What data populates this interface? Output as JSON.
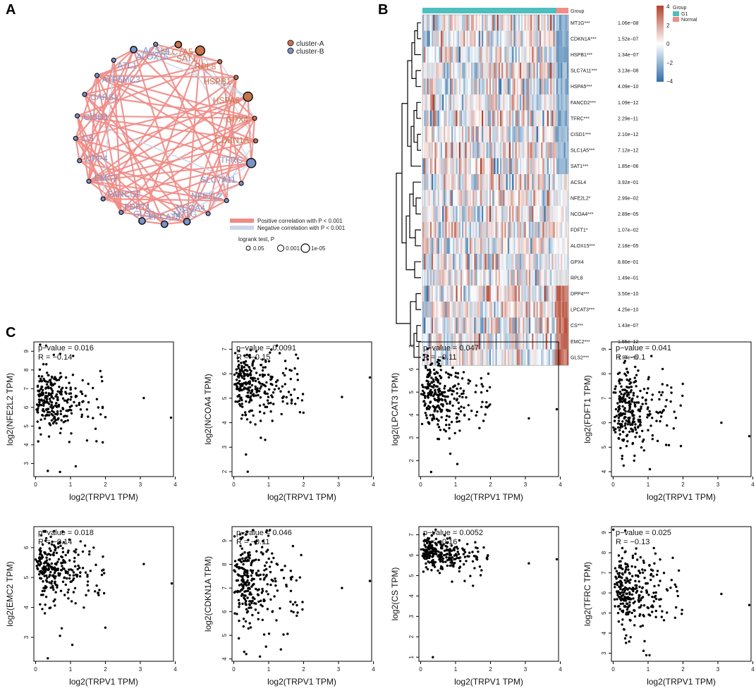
{
  "panels": {
    "a": {
      "letter": "A",
      "legend": {
        "clusters": [
          {
            "label": "cluster-A",
            "color": "#c8744b"
          },
          {
            "label": "cluster-B",
            "color": "#7a93c8"
          }
        ],
        "correlations": [
          {
            "label": "Positive correlation with P < 0.001",
            "color": "#f08b86"
          },
          {
            "label": "Negative correlation with P < 0.001",
            "color": "#c9d6ea"
          }
        ],
        "logrank_title": "logrank test, P",
        "logrank_items": [
          "0.05",
          "0.001",
          "1e-05"
        ]
      },
      "nodes": [
        {
          "label": "SLC7A5",
          "cluster": "A",
          "size": 2
        },
        {
          "label": "SAT1",
          "cluster": "A",
          "size": 3
        },
        {
          "label": "RPL8",
          "cluster": "A",
          "size": 1
        },
        {
          "label": "HSPB1",
          "cluster": "A",
          "size": 1
        },
        {
          "label": "HSPA5",
          "cluster": "A",
          "size": 3
        },
        {
          "label": "GPX4",
          "cluster": "A",
          "size": 1
        },
        {
          "label": "CDKN1A",
          "cluster": "A",
          "size": 1
        },
        {
          "label": "TFRC",
          "cluster": "B",
          "size": 3
        },
        {
          "label": "SLC7A11",
          "cluster": "B",
          "size": 1
        },
        {
          "label": "NFE2L2",
          "cluster": "B",
          "size": 1
        },
        {
          "label": "NCOA4",
          "cluster": "B",
          "size": 1
        },
        {
          "label": "MT1G",
          "cluster": "B",
          "size": 2
        },
        {
          "label": "LPCAT3",
          "cluster": "B",
          "size": 2
        },
        {
          "label": "GLS2",
          "cluster": "B",
          "size": 2
        },
        {
          "label": "FDFT1",
          "cluster": "B",
          "size": 1
        },
        {
          "label": "FANCD2",
          "cluster": "B",
          "size": 1
        },
        {
          "label": "EMC2",
          "cluster": "B",
          "size": 1
        },
        {
          "label": "DPP4",
          "cluster": "B",
          "size": 1
        },
        {
          "label": "CS",
          "cluster": "B",
          "size": 1
        },
        {
          "label": "CISD1",
          "cluster": "B",
          "size": 1
        },
        {
          "label": "CARS1",
          "cluster": "B",
          "size": 1
        },
        {
          "label": "ATP5MC3",
          "cluster": "B",
          "size": 1
        },
        {
          "label": "ATL1",
          "cluster": "B",
          "size": 1
        },
        {
          "label": "ALOX15",
          "cluster": "B",
          "size": 2
        },
        {
          "label": "ACSL4",
          "cluster": "B",
          "size": 1
        }
      ]
    },
    "b": {
      "letter": "B",
      "group_header": "Group",
      "legend_title": "Group",
      "groups": [
        {
          "label": "G1",
          "color": "#4dbfbf"
        },
        {
          "label": "Normal",
          "color": "#f08d86"
        }
      ],
      "scale_ticks": [
        "4",
        "2",
        "0",
        "−2",
        "−4"
      ],
      "rows": [
        {
          "gene": "MT1G***",
          "p": "1.06e−08"
        },
        {
          "gene": "CDKN1A***",
          "p": "1.52e−07"
        },
        {
          "gene": "HSPB1***",
          "p": "1.34e−07"
        },
        {
          "gene": "SLC7A11***",
          "p": "3.13e−08"
        },
        {
          "gene": "HSPA5***",
          "p": "4.09e−10"
        },
        {
          "gene": "FANCD2***",
          "p": "1.09e−12"
        },
        {
          "gene": "TFRC***",
          "p": "2.29e−11"
        },
        {
          "gene": "CISD1***",
          "p": "2.10e−12"
        },
        {
          "gene": "SLC1A5***",
          "p": "7.12e−12"
        },
        {
          "gene": "SAT1***",
          "p": "1.85e−06"
        },
        {
          "gene": "ACSL4",
          "p": "3.92e−01"
        },
        {
          "gene": "NFE2L2*",
          "p": "2.99e−02"
        },
        {
          "gene": "NCOA4***",
          "p": "2.89e−05"
        },
        {
          "gene": "FDFT1*",
          "p": "1.07e−02"
        },
        {
          "gene": "ALOX15***",
          "p": "2.18e−05"
        },
        {
          "gene": "GPX4",
          "p": "8.80e−01"
        },
        {
          "gene": "RPL8",
          "p": "1.49e−01"
        },
        {
          "gene": "DPP4***",
          "p": "3.50e−10"
        },
        {
          "gene": "LPCAT3***",
          "p": "4.25e−10"
        },
        {
          "gene": "CS***",
          "p": "1.43e−07"
        },
        {
          "gene": "EMC2***",
          "p": "1.55e−12"
        },
        {
          "gene": "GLS2***",
          "p": "1.94e−11"
        }
      ]
    },
    "c": {
      "letter": "C"
    }
  },
  "chart_data": [
    {
      "type": "scatter",
      "title": "NFE2L2",
      "xlabel": "log2(TRPV1 TPM)",
      "ylabel": "log2(NFE2L2 TPM)",
      "pvalue_text": "p−value = 0.016",
      "r_text": "R = −0.14",
      "xlim": [
        -0.05,
        3.95
      ],
      "ylim": [
        2.3,
        9.5
      ],
      "yticks": [
        3,
        4,
        5,
        6,
        7,
        8,
        9
      ],
      "xticks": [
        0,
        1,
        2,
        3,
        4
      ],
      "x_tick_labels": [
        "0",
        "1",
        "2",
        "3",
        "4"
      ],
      "y_tick_labels": [
        "3",
        "4",
        "5",
        "6",
        "7",
        "8",
        "9"
      ],
      "n_points": 270,
      "center": 6.4,
      "spread": 0.85,
      "slope": -0.25,
      "seed": 11,
      "outliers": [
        [
          3.1,
          6.5
        ],
        [
          3.88,
          5.45
        ],
        [
          0.35,
          2.6
        ],
        [
          1.15,
          2.85
        ],
        [
          0.7,
          2.55
        ],
        [
          0.3,
          9.3
        ]
      ]
    },
    {
      "type": "scatter",
      "title": "NCOA4",
      "xlabel": "log2(TRPV1 TPM)",
      "ylabel": "log2(NCOA4 TPM)",
      "pvalue_text": "p−value = 0.0091",
      "r_text": "R = −0.15",
      "xlim": [
        -0.05,
        3.95
      ],
      "ylim": [
        1.8,
        7.3
      ],
      "yticks": [
        2,
        3,
        4,
        5,
        6,
        7
      ],
      "xticks": [
        0,
        1,
        2,
        3,
        4
      ],
      "x_tick_labels": [
        "0",
        "1",
        "2",
        "3",
        "4"
      ],
      "y_tick_labels": [
        "2",
        "3",
        "4",
        "5",
        "6",
        "7"
      ],
      "n_points": 270,
      "center": 5.6,
      "spread": 0.6,
      "slope": -0.2,
      "seed": 23,
      "outliers": [
        [
          3.1,
          5.05
        ],
        [
          3.9,
          5.85
        ],
        [
          0.4,
          2.0
        ],
        [
          0.35,
          2.7
        ],
        [
          0.9,
          3.3
        ]
      ]
    },
    {
      "type": "scatter",
      "title": "LPCAT3",
      "xlabel": "log2(TRPV1 TPM)",
      "ylabel": "log2(LPCAT3 TPM)",
      "pvalue_text": "p−value = 0.047",
      "r_text": "R = −0.11",
      "xlim": [
        -0.05,
        3.95
      ],
      "ylim": [
        1.3,
        7.2
      ],
      "yticks": [
        2,
        3,
        4,
        5,
        6,
        7
      ],
      "xticks": [
        0,
        1,
        2,
        3,
        4
      ],
      "x_tick_labels": [
        "0",
        "1",
        "2",
        "3",
        "4"
      ],
      "y_tick_labels": [
        "2",
        "3",
        "4",
        "5",
        "6",
        "7"
      ],
      "n_points": 270,
      "center": 4.8,
      "spread": 0.75,
      "slope": -0.2,
      "seed": 37,
      "outliers": [
        [
          3.1,
          3.85
        ],
        [
          3.9,
          4.25
        ],
        [
          0.3,
          1.5
        ],
        [
          1.05,
          1.85
        ],
        [
          0.85,
          2.3
        ],
        [
          0.2,
          6.9
        ]
      ]
    },
    {
      "type": "scatter",
      "title": "FDFT1",
      "xlabel": "log2(TRPV1 TPM)",
      "ylabel": "log2(FDFT1 TPM)",
      "pvalue_text": "p−value = 0.041",
      "r_text": "R = −0.1",
      "xlim": [
        -0.05,
        3.95
      ],
      "ylim": [
        3.8,
        9.3
      ],
      "yticks": [
        4,
        5,
        6,
        7,
        8,
        9
      ],
      "xticks": [
        0,
        1,
        2,
        3,
        4
      ],
      "x_tick_labels": [
        "0",
        "1",
        "2",
        "3",
        "4"
      ],
      "y_tick_labels": [
        "4",
        "5",
        "6",
        "7",
        "8",
        "9"
      ],
      "n_points": 270,
      "center": 6.6,
      "spread": 0.8,
      "slope": -0.15,
      "seed": 53,
      "outliers": [
        [
          3.1,
          6.0
        ],
        [
          3.9,
          5.45
        ],
        [
          0.3,
          4.25
        ],
        [
          0.6,
          4.45
        ],
        [
          1.05,
          4.1
        ]
      ]
    },
    {
      "type": "scatter",
      "title": "EMC2",
      "xlabel": "log2(TRPV1 TPM)",
      "ylabel": "log2(EMC2 TPM)",
      "pvalue_text": "p−value = 0.018",
      "r_text": "R = −0.14",
      "xlim": [
        -0.05,
        3.95
      ],
      "ylim": [
        2.2,
        6.7
      ],
      "yticks": [
        3,
        4,
        5,
        6
      ],
      "xticks": [
        0,
        1,
        2,
        3,
        4
      ],
      "x_tick_labels": [
        "0",
        "1",
        "2",
        "3",
        "4"
      ],
      "y_tick_labels": [
        "3",
        "4",
        "5",
        "6"
      ],
      "n_points": 270,
      "center": 5.3,
      "spread": 0.5,
      "slope": -0.15,
      "seed": 71,
      "outliers": [
        [
          3.1,
          5.45
        ],
        [
          3.9,
          4.8
        ],
        [
          0.35,
          2.3
        ],
        [
          1.05,
          2.75
        ],
        [
          0.7,
          3.05
        ],
        [
          0.75,
          3.3
        ]
      ]
    },
    {
      "type": "scatter",
      "title": "CDKN1A",
      "xlabel": "log2(TRPV1 TPM)",
      "ylabel": "log2(CDKN1A TPM)",
      "pvalue_text": "p−value = 0.046",
      "r_text": "R = −0.11",
      "xlim": [
        -0.05,
        3.95
      ],
      "ylim": [
        3.9,
        9.6
      ],
      "yticks": [
        4,
        5,
        6,
        7,
        8,
        9
      ],
      "xticks": [
        0,
        1,
        2,
        3,
        4
      ],
      "x_tick_labels": [
        "0",
        "1",
        "2",
        "3",
        "4"
      ],
      "y_tick_labels": [
        "4",
        "5",
        "6",
        "7",
        "8",
        "9"
      ],
      "n_points": 280,
      "center": 7.2,
      "spread": 1.0,
      "slope": -0.2,
      "seed": 89,
      "outliers": [
        [
          3.1,
          7.0
        ],
        [
          3.9,
          7.3
        ],
        [
          0.3,
          4.3
        ],
        [
          0.75,
          4.1
        ],
        [
          1.35,
          4.4
        ]
      ]
    },
    {
      "type": "scatter",
      "title": "CS",
      "xlabel": "log2(TRPV1 TPM)",
      "ylabel": "log2(CS TPM)",
      "pvalue_text": "p−value = 0.0052",
      "r_text": "R = −0.16",
      "xlim": [
        -0.05,
        3.95
      ],
      "ylim": [
        0.8,
        7.4
      ],
      "yticks": [
        1,
        2,
        3,
        4,
        5,
        6,
        7
      ],
      "xticks": [
        0,
        1,
        2,
        3,
        4
      ],
      "x_tick_labels": [
        "0",
        "1",
        "2",
        "3",
        "4"
      ],
      "y_tick_labels": [
        "1",
        "2",
        "3",
        "4",
        "5",
        "6",
        "7"
      ],
      "n_points": 270,
      "center": 6.1,
      "spread": 0.4,
      "slope": -0.2,
      "seed": 101,
      "outliers": [
        [
          3.1,
          5.6
        ],
        [
          3.9,
          5.8
        ],
        [
          0.35,
          1.0
        ],
        [
          1.5,
          4.5
        ],
        [
          0.9,
          4.7
        ]
      ]
    },
    {
      "type": "scatter",
      "title": "TFRC",
      "xlabel": "log2(TRPV1 TPM)",
      "ylabel": "log2(TFRC TPM)",
      "pvalue_text": "p−value = 0.025",
      "r_text": "R = −0.13",
      "xlim": [
        -0.05,
        3.95
      ],
      "ylim": [
        2.6,
        9.3
      ],
      "yticks": [
        3,
        4,
        5,
        6,
        7,
        8,
        9
      ],
      "xticks": [
        0,
        1,
        2,
        3,
        4
      ],
      "x_tick_labels": [
        "0",
        "1",
        "2",
        "3",
        "4"
      ],
      "y_tick_labels": [
        "3",
        "4",
        "5",
        "6",
        "7",
        "8",
        "9"
      ],
      "n_points": 280,
      "center": 6.2,
      "spread": 1.0,
      "slope": -0.25,
      "seed": 127,
      "outliers": [
        [
          3.1,
          5.95
        ],
        [
          3.9,
          5.4
        ],
        [
          0.95,
          2.9
        ],
        [
          0.9,
          3.6
        ],
        [
          0.5,
          3.8
        ]
      ]
    }
  ]
}
